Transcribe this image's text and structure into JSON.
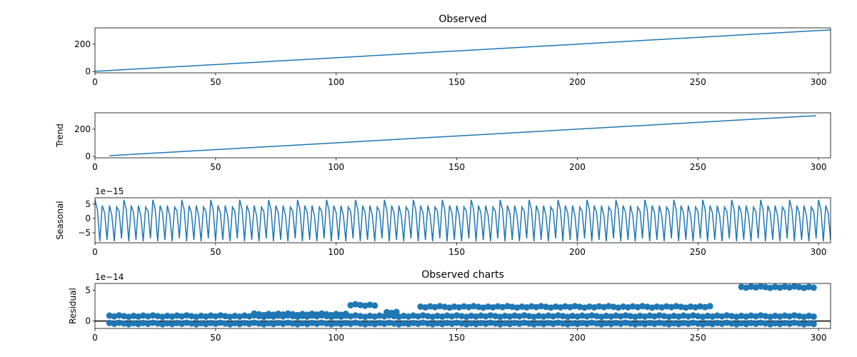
{
  "chart_data": [
    {
      "type": "line",
      "title": "Observed",
      "ylabel": "",
      "xlim": [
        0,
        305
      ],
      "ylim": [
        -10,
        320
      ],
      "xticks": [
        0,
        50,
        100,
        150,
        200,
        250,
        300
      ],
      "yticks": [
        0,
        200
      ],
      "series": [
        {
          "x": [
            0,
            305
          ],
          "y": [
            1,
            305
          ],
          "color": "#1f77b4"
        }
      ]
    },
    {
      "type": "line",
      "title": "",
      "ylabel": "Trend",
      "xlim": [
        0,
        305
      ],
      "ylim": [
        -10,
        320
      ],
      "xticks": [
        0,
        50,
        100,
        150,
        200,
        250,
        300
      ],
      "yticks": [
        0,
        200
      ],
      "series": [
        {
          "x": [
            6,
            299
          ],
          "y": [
            6,
            299
          ],
          "color": "#1f77b4"
        }
      ]
    },
    {
      "type": "line",
      "title": "",
      "ylabel": "Seasonal",
      "offset_text": "1e−15",
      "xlim": [
        0,
        305
      ],
      "ylim": [
        -8.5,
        7.2
      ],
      "xticks": [
        0,
        50,
        100,
        150,
        200,
        250,
        300
      ],
      "yticks": [
        -5,
        0,
        5
      ],
      "period": 12,
      "pattern": [
        6.5,
        3.0,
        -8.0,
        4.5,
        2.0,
        -7.5,
        4.5,
        1.0,
        -8.0,
        4.0,
        2.5,
        -7.0
      ],
      "x_range": [
        0,
        305
      ],
      "color": "#1f77b4"
    },
    {
      "type": "scatter",
      "title": "Observed charts",
      "ylabel": "Residual",
      "offset_text": "1e−14",
      "xlim": [
        0,
        305
      ],
      "ylim": [
        -1.2,
        6.1
      ],
      "xticks": [
        0,
        50,
        100,
        150,
        200,
        250,
        300
      ],
      "yticks": [
        0,
        5
      ],
      "hline": 0,
      "x_range": [
        6,
        299
      ],
      "bands": [
        {
          "from": 6,
          "to": 299,
          "y": 0.8
        },
        {
          "from": 6,
          "to": 299,
          "y": -0.4
        },
        {
          "from": 66,
          "to": 105,
          "y": 1.1
        },
        {
          "from": 106,
          "to": 116,
          "y": 2.6
        },
        {
          "from": 121,
          "to": 126,
          "y": 1.4
        },
        {
          "from": 135,
          "to": 256,
          "y": 2.3
        },
        {
          "from": 268,
          "to": 299,
          "y": 5.5
        }
      ],
      "color": "#1f77b4"
    }
  ]
}
